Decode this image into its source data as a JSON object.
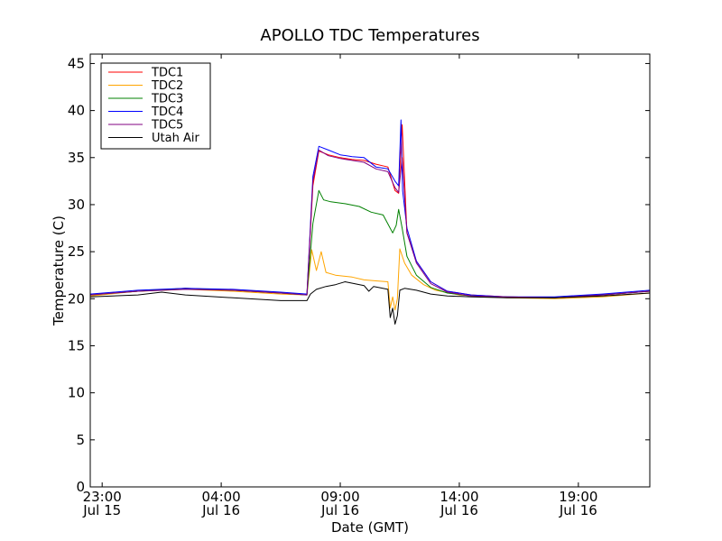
{
  "chart_data": {
    "type": "line",
    "title": "APOLLO TDC Temperatures",
    "xlabel": "Date (GMT)",
    "ylabel": "Temperature (C)",
    "xlim_hours": [
      -1.5,
      22.0
    ],
    "ylim": [
      0,
      46
    ],
    "x_unit": "hours since Jul 16 00:00 GMT",
    "grid": false,
    "legend_position": "top-left",
    "x_ticks": [
      {
        "hour": -1,
        "time": "23:00",
        "date": "Jul 15"
      },
      {
        "hour": 4,
        "time": "04:00",
        "date": "Jul 16"
      },
      {
        "hour": 9,
        "time": "09:00",
        "date": "Jul 16"
      },
      {
        "hour": 14,
        "time": "14:00",
        "date": "Jul 16"
      },
      {
        "hour": 19,
        "time": "19:00",
        "date": "Jul 16"
      }
    ],
    "y_ticks": [
      0,
      5,
      10,
      15,
      20,
      25,
      30,
      35,
      40,
      45
    ],
    "series": [
      {
        "name": "TDC1",
        "color": "#ff0000",
        "x": [
          -1.5,
          0.5,
          2.5,
          4.5,
          6.5,
          7.6,
          7.85,
          8.1,
          8.5,
          9.0,
          9.5,
          10.0,
          10.5,
          11.0,
          11.3,
          11.45,
          11.6,
          11.8,
          12.2,
          12.8,
          13.5,
          14.5,
          16.0,
          18.0,
          20.0,
          22.0
        ],
        "y": [
          20.4,
          20.8,
          21.1,
          20.9,
          20.6,
          20.4,
          32.0,
          35.7,
          35.3,
          35.0,
          34.8,
          34.7,
          34.3,
          34.0,
          31.5,
          31.2,
          38.5,
          27.0,
          24.0,
          21.8,
          20.8,
          20.4,
          20.2,
          20.1,
          20.4,
          20.8
        ]
      },
      {
        "name": "TDC2",
        "color": "#ffa500",
        "x": [
          -1.5,
          0.5,
          2.5,
          4.5,
          6.5,
          7.6,
          7.8,
          8.0,
          8.2,
          8.4,
          8.8,
          9.5,
          10.0,
          10.5,
          11.0,
          11.1,
          11.2,
          11.3,
          11.4,
          11.5,
          11.7,
          12.0,
          12.5,
          13.0,
          14.0,
          16.0,
          18.0,
          20.0,
          22.0
        ],
        "y": [
          20.3,
          20.8,
          21.0,
          20.8,
          20.5,
          20.4,
          25.2,
          23.0,
          25.0,
          22.8,
          22.5,
          22.3,
          22.0,
          21.9,
          21.8,
          19.0,
          20.2,
          18.8,
          20.0,
          25.3,
          23.8,
          22.5,
          21.5,
          20.9,
          20.4,
          20.1,
          20.0,
          20.2,
          20.6
        ]
      },
      {
        "name": "TDC3",
        "color": "#008000",
        "x": [
          -1.5,
          0.5,
          2.5,
          4.5,
          6.5,
          7.6,
          7.85,
          8.1,
          8.3,
          8.6,
          9.2,
          9.8,
          10.3,
          10.8,
          11.2,
          11.35,
          11.45,
          11.6,
          11.8,
          12.2,
          12.8,
          13.5,
          14.5,
          16.0,
          18.0,
          20.0,
          22.0
        ],
        "y": [
          20.4,
          20.8,
          21.1,
          20.9,
          20.6,
          20.4,
          28.0,
          31.5,
          30.5,
          30.3,
          30.1,
          29.8,
          29.2,
          28.9,
          27.0,
          27.8,
          29.5,
          27.5,
          24.5,
          22.5,
          21.2,
          20.6,
          20.3,
          20.2,
          20.1,
          20.4,
          20.8
        ]
      },
      {
        "name": "TDC4",
        "color": "#0000ff",
        "x": [
          -1.5,
          0.5,
          2.5,
          4.5,
          6.5,
          7.6,
          7.85,
          8.1,
          8.5,
          9.0,
          9.5,
          10.0,
          10.5,
          11.0,
          11.3,
          11.45,
          11.55,
          11.62,
          11.8,
          12.2,
          12.8,
          13.5,
          14.5,
          16.0,
          18.0,
          20.0,
          22.0
        ],
        "y": [
          20.5,
          20.9,
          21.1,
          21.0,
          20.7,
          20.5,
          33.0,
          36.2,
          35.8,
          35.3,
          35.1,
          35.0,
          34.0,
          33.8,
          32.5,
          32.0,
          39.0,
          31.5,
          27.5,
          24.0,
          21.8,
          20.8,
          20.4,
          20.2,
          20.2,
          20.5,
          20.9
        ]
      },
      {
        "name": "TDC5",
        "color": "#800080",
        "x": [
          -1.5,
          0.5,
          2.5,
          4.5,
          6.5,
          7.6,
          7.85,
          8.1,
          8.5,
          9.0,
          9.5,
          10.0,
          10.5,
          11.0,
          11.3,
          11.45,
          11.6,
          11.8,
          12.2,
          12.8,
          13.5,
          14.5,
          16.0,
          18.0,
          20.0,
          22.0
        ],
        "y": [
          20.4,
          20.8,
          21.0,
          20.9,
          20.6,
          20.4,
          32.5,
          35.8,
          35.2,
          34.9,
          34.7,
          34.5,
          33.8,
          33.5,
          31.8,
          31.3,
          35.0,
          27.0,
          23.8,
          21.6,
          20.7,
          20.3,
          20.2,
          20.1,
          20.4,
          20.8
        ]
      },
      {
        "name": "Utah Air",
        "color": "#000000",
        "x": [
          -1.5,
          0.5,
          1.5,
          2.5,
          4.5,
          6.5,
          7.6,
          7.75,
          8.0,
          8.4,
          8.8,
          9.2,
          9.6,
          10.0,
          10.2,
          10.4,
          10.6,
          11.0,
          11.1,
          11.2,
          11.3,
          11.4,
          11.5,
          11.7,
          12.2,
          12.8,
          13.5,
          14.5,
          16.0,
          18.0,
          20.0,
          22.0
        ],
        "y": [
          20.2,
          20.4,
          20.7,
          20.4,
          20.1,
          19.8,
          19.8,
          20.5,
          21.0,
          21.3,
          21.5,
          21.8,
          21.6,
          21.4,
          20.8,
          21.3,
          21.2,
          21.0,
          18.0,
          19.0,
          17.3,
          18.2,
          20.9,
          21.1,
          20.9,
          20.5,
          20.3,
          20.2,
          20.1,
          20.1,
          20.3,
          20.6
        ]
      }
    ]
  }
}
